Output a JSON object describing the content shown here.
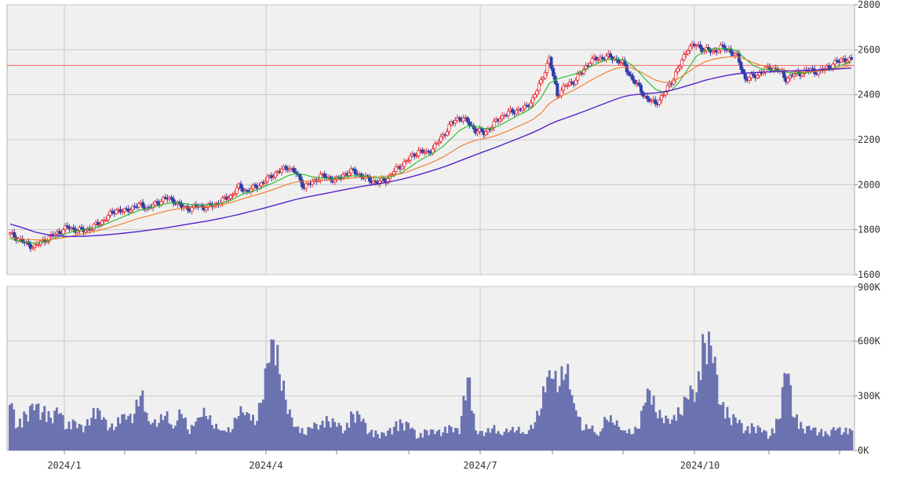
{
  "chart_data": [
    {
      "type": "candlestick",
      "title": "",
      "ylim": [
        1600,
        2800
      ],
      "yticks": [
        1600,
        1800,
        2000,
        2200,
        2400,
        2600,
        2800
      ],
      "ytick_labels": [
        "1600",
        "1800",
        "2000",
        "2200",
        "2400",
        "2600",
        "2800"
      ],
      "xtick_labels": [
        "2024/1",
        "2024/4",
        "2024/7",
        "2024/10"
      ],
      "reference_line": 2530,
      "close_path": [
        1780,
        1760,
        1735,
        1725,
        1750,
        1770,
        1790,
        1810,
        1800,
        1795,
        1810,
        1830,
        1860,
        1890,
        1880,
        1900,
        1910,
        1895,
        1920,
        1940,
        1930,
        1900,
        1895,
        1905,
        1900,
        1910,
        1930,
        1950,
        1990,
        1970,
        1990,
        2010,
        2040,
        2060,
        2080,
        2050,
        1990,
        2010,
        2040,
        2030,
        2020,
        2050,
        2060,
        2040,
        2020,
        2010,
        2020,
        2060,
        2090,
        2120,
        2150,
        2140,
        2170,
        2220,
        2270,
        2300,
        2280,
        2240,
        2230,
        2260,
        2300,
        2320,
        2330,
        2340,
        2380,
        2460,
        2560,
        2400,
        2440,
        2460,
        2500,
        2550,
        2560,
        2570,
        2560,
        2540,
        2480,
        2430,
        2380,
        2360,
        2400,
        2460,
        2530,
        2610,
        2620,
        2600,
        2590,
        2610,
        2600,
        2570,
        2470,
        2480,
        2500,
        2520,
        2510,
        2470,
        2490,
        2500,
        2510,
        2500,
        2520,
        2540,
        2560,
        2550
      ],
      "series": [
        {
          "values": [
            1760,
            1750,
            1745,
            1740,
            1745,
            1755,
            1770,
            1785,
            1795,
            1800,
            1805,
            1815,
            1830,
            1845,
            1860,
            1875,
            1888,
            1895,
            1905,
            1915,
            1920,
            1918,
            1912,
            1910,
            1910,
            1912,
            1920,
            1930,
            1950,
            1965,
            1975,
            1990,
            2005,
            2022,
            2040,
            2050,
            2045,
            2035,
            2030,
            2028,
            2030,
            2035,
            2040,
            2040,
            2035,
            2030,
            2030,
            2040,
            2055,
            2080,
            2105,
            2125,
            2145,
            2170,
            2205,
            2240,
            2260,
            2260,
            2250,
            2250,
            2265,
            2285,
            2305,
            2322,
            2345,
            2385,
            2450,
            2470,
            2480,
            2490,
            2505,
            2525,
            2540,
            2555,
            2560,
            2555,
            2535,
            2500,
            2460,
            2425,
            2410,
            2420,
            2460,
            2515,
            2570,
            2595,
            2605,
            2605,
            2605,
            2595,
            2560,
            2530,
            2515,
            2510,
            2508,
            2500,
            2495,
            2495,
            2500,
            2505,
            2510,
            2520,
            2535,
            2545
          ]
        },
        {
          "values": [
            1765,
            1760,
            1757,
            1755,
            1755,
            1757,
            1762,
            1768,
            1775,
            1782,
            1790,
            1798,
            1808,
            1818,
            1830,
            1842,
            1853,
            1862,
            1872,
            1882,
            1890,
            1895,
            1898,
            1900,
            1902,
            1906,
            1912,
            1920,
            1932,
            1943,
            1953,
            1964,
            1976,
            1989,
            2003,
            2012,
            2015,
            2016,
            2018,
            2020,
            2022,
            2026,
            2030,
            2033,
            2035,
            2036,
            2038,
            2043,
            2050,
            2062,
            2076,
            2090,
            2105,
            2123,
            2145,
            2168,
            2185,
            2197,
            2205,
            2213,
            2225,
            2240,
            2256,
            2272,
            2290,
            2318,
            2360,
            2385,
            2403,
            2420,
            2440,
            2462,
            2482,
            2500,
            2515,
            2523,
            2520,
            2505,
            2485,
            2465,
            2455,
            2458,
            2475,
            2500,
            2525,
            2545,
            2557,
            2564,
            2568,
            2569,
            2558,
            2542,
            2530,
            2522,
            2516,
            2508,
            2503,
            2500,
            2502,
            2505,
            2509,
            2515,
            2523,
            2530
          ]
        },
        {
          "values": [
            1825,
            1815,
            1803,
            1790,
            1782,
            1775,
            1772,
            1770,
            1770,
            1771,
            1773,
            1775,
            1778,
            1781,
            1785,
            1789,
            1793,
            1798,
            1803,
            1808,
            1814,
            1820,
            1826,
            1832,
            1838,
            1845,
            1852,
            1860,
            1868,
            1877,
            1886,
            1895,
            1905,
            1915,
            1925,
            1935,
            1943,
            1950,
            1957,
            1964,
            1971,
            1978,
            1985,
            1992,
            1998,
            2004,
            2010,
            2017,
            2025,
            2034,
            2044,
            2055,
            2066,
            2078,
            2091,
            2105,
            2119,
            2133,
            2147,
            2160,
            2174,
            2188,
            2202,
            2217,
            2232,
            2249,
            2268,
            2283,
            2296,
            2309,
            2322,
            2336,
            2350,
            2364,
            2378,
            2390,
            2398,
            2402,
            2405,
            2408,
            2413,
            2420,
            2430,
            2441,
            2452,
            2463,
            2472,
            2480,
            2487,
            2493,
            2496,
            2498,
            2500,
            2502,
            2504,
            2505,
            2506,
            2507,
            2508,
            2510,
            2512,
            2514,
            2516,
            2518
          ]
        }
      ],
      "colors": {
        "up": "#e8313a",
        "down": "#2d3ea8",
        "ma_short": "#22bb22",
        "ma_medium": "#f07820",
        "ma_long": "#5522cc",
        "reference_line": "#ff6666",
        "panel_bg": "#f0f0f0",
        "grid": "#c8c8c8"
      },
      "grid": true
    },
    {
      "type": "bar",
      "title": "",
      "ylim": [
        0,
        900000
      ],
      "yticks": [
        0,
        300000,
        600000,
        900000
      ],
      "ytick_labels": [
        "0K",
        "300K",
        "600K",
        "900K"
      ],
      "xtick_labels": [
        "2024/1",
        "2024/4",
        "2024/7",
        "2024/10"
      ],
      "values": [
        250000,
        130000,
        200000,
        220000,
        210000,
        180000,
        200000,
        120000,
        160000,
        100000,
        180000,
        220000,
        110000,
        130000,
        200000,
        150000,
        300000,
        160000,
        130000,
        190000,
        120000,
        200000,
        90000,
        180000,
        190000,
        120000,
        110000,
        100000,
        190000,
        210000,
        140000,
        280000,
        610000,
        420000,
        200000,
        130000,
        90000,
        120000,
        140000,
        160000,
        130000,
        110000,
        200000,
        160000,
        100000,
        90000,
        80000,
        130000,
        150000,
        120000,
        70000,
        110000,
        90000,
        100000,
        130000,
        90000,
        400000,
        110000,
        80000,
        120000,
        90000,
        100000,
        110000,
        90000,
        120000,
        230000,
        440000,
        320000,
        420000,
        260000,
        110000,
        120000,
        80000,
        170000,
        140000,
        110000,
        90000,
        120000,
        340000,
        210000,
        150000,
        170000,
        200000,
        280000,
        320000,
        590000,
        480000,
        250000,
        180000,
        150000,
        110000,
        130000,
        100000,
        80000,
        170000,
        420000,
        180000,
        120000,
        110000,
        100000,
        90000,
        110000,
        100000,
        110000
      ],
      "colors": {
        "bar": "#6b72b0",
        "panel_bg": "#f0f0f0",
        "grid": "#c8c8c8"
      },
      "grid": true
    }
  ]
}
